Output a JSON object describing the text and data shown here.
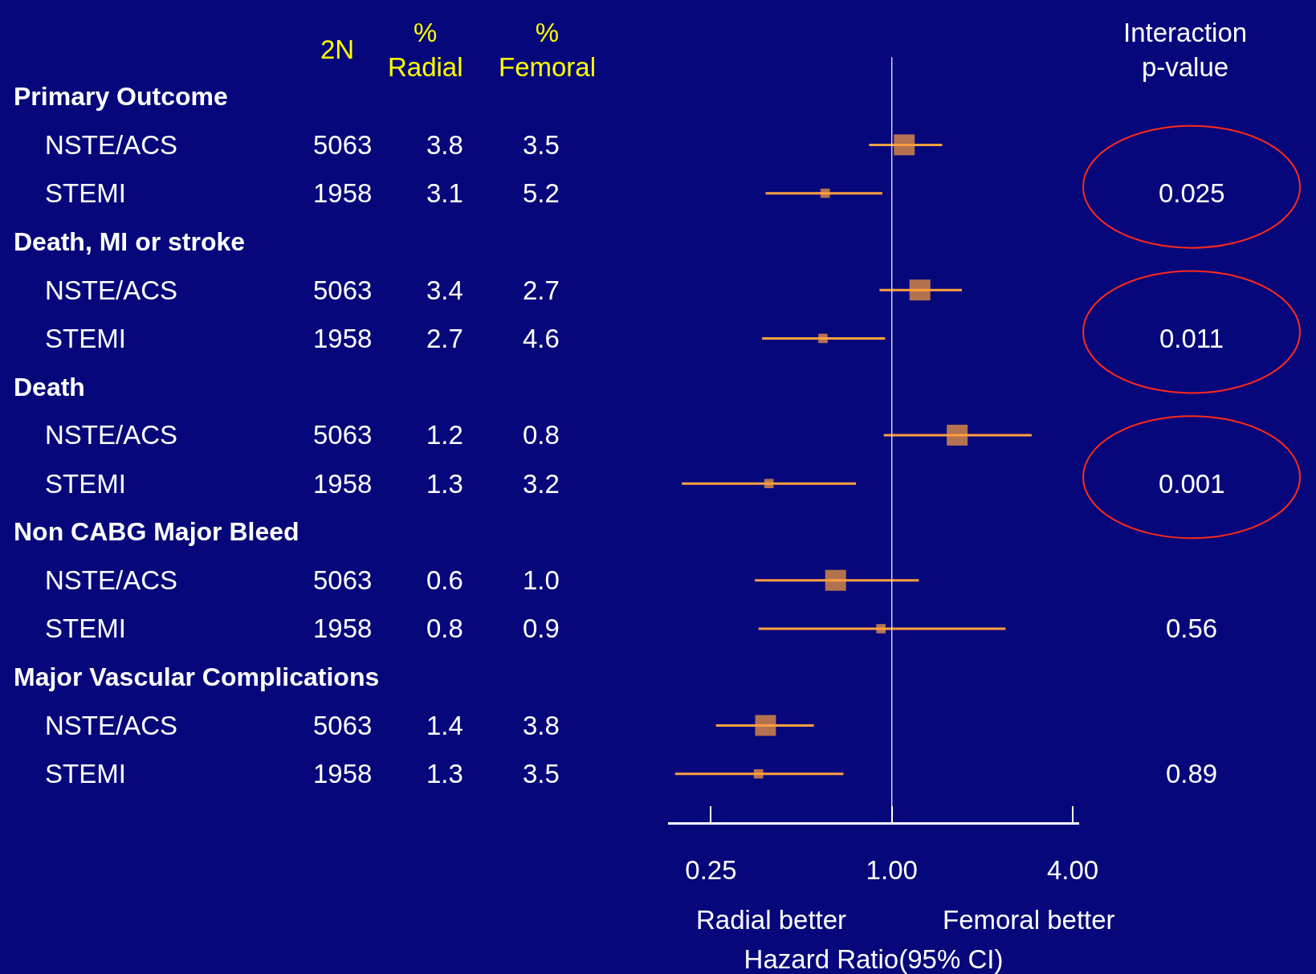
{
  "chart_data": [
    {
      "type": "other",
      "categories": [
        "NSTE/ACS",
        "STEMI",
        "NSTE/ACS",
        "STEMI",
        "NSTE/ACS",
        "STEMI",
        "NSTE/ACS",
        "STEMI",
        "NSTE/ACS",
        "STEMI"
      ],
      "annotations": [
        "Primary Outcome",
        "Death, MI or stroke",
        "Death",
        "Non CABG Major Bleed",
        "Major Vascular Complications"
      ],
      "series": [
        {
          "name": "2N",
          "values": [
            5063,
            1958,
            5063,
            1958,
            5063,
            1958,
            5063,
            1958,
            5063,
            1958
          ],
          "value_labels": [
            "5063",
            "1958",
            "5063",
            "1958",
            "5063",
            "1958",
            "5063",
            "1958",
            "5063",
            "1958"
          ]
        },
        {
          "name": "%\nRadial",
          "values": [
            3.8,
            3.1,
            3.4,
            2.7,
            1.2,
            1.3,
            0.6,
            0.8,
            1.4,
            1.3
          ],
          "value_labels": [
            "3.8",
            "3.1",
            "3.4",
            "2.7",
            "1.2",
            "1.3",
            "0.6",
            "0.8",
            "1.4",
            "1.3"
          ]
        },
        {
          "name": "%\nFemoral",
          "values": [
            3.5,
            5.2,
            2.7,
            4.6,
            0.8,
            3.2,
            1.0,
            0.9,
            3.8,
            3.5
          ],
          "value_labels": [
            "3.5",
            "5.2",
            "2.7",
            "4.6",
            "0.8",
            "3.2",
            "1.0",
            "0.9",
            "3.8",
            "3.5"
          ]
        },
        {
          "name": "Interaction\np-value",
          "values": [
            null,
            0.025,
            null,
            0.011,
            null,
            0.001,
            null,
            0.56,
            null,
            0.89
          ],
          "value_labels": [
            null,
            "0.025",
            null,
            "0.011",
            null,
            "0.001",
            null,
            "0.56",
            null,
            "0.89"
          ],
          "colors": [
            null,
            "#ff2a1a",
            null,
            "#ff2a1a",
            null,
            "#ff2a1a",
            null,
            null,
            null,
            null
          ]
        }
      ]
    },
    {
      "type": "scatter",
      "orientation": "horizontal",
      "log": "x",
      "marker": "square",
      "grid": false,
      "tick_labels": "x",
      "categories": [
        null,
        null,
        null,
        null,
        null,
        null,
        null,
        null,
        null,
        null,
        null,
        null,
        null,
        null,
        null
      ],
      "xlabel": "Hazard Ratio(95% CI)",
      "xlim": [
        0.18,
        4.2
      ],
      "xticks": [
        {
          "value": 0.25,
          "label": "0.25"
        },
        {
          "value": 1,
          "label": "1.00"
        },
        {
          "value": 4,
          "label": "4.00"
        }
      ],
      "ref_lines": [
        {
          "axis": "x",
          "value": 1,
          "color": "#ffffff"
        }
      ],
      "annotations": [
        "Radial better",
        "Femoral better"
      ],
      "series": [
        {
          "color": "#ffa040",
          "values": [
            null,
            1.1,
            0.6,
            null,
            1.24,
            0.59,
            null,
            1.65,
            0.39,
            null,
            0.65,
            0.92,
            null,
            0.38,
            0.36
          ],
          "errors": [
            null,
            [
              0.84,
              1.47
            ],
            [
              0.38,
              0.93
            ],
            null,
            [
              0.91,
              1.71
            ],
            [
              0.37,
              0.95
            ],
            null,
            [
              0.94,
              2.92
            ],
            [
              0.2,
              0.76
            ],
            null,
            [
              0.35,
              1.23
            ],
            [
              0.36,
              2.39
            ],
            null,
            [
              0.26,
              0.55
            ],
            [
              0.19,
              0.69
            ]
          ],
          "sizes": [
            null,
            1,
            0.2,
            null,
            1,
            0.2,
            null,
            1,
            0.2,
            null,
            1,
            0.2,
            null,
            1,
            0.2
          ]
        }
      ]
    }
  ]
}
